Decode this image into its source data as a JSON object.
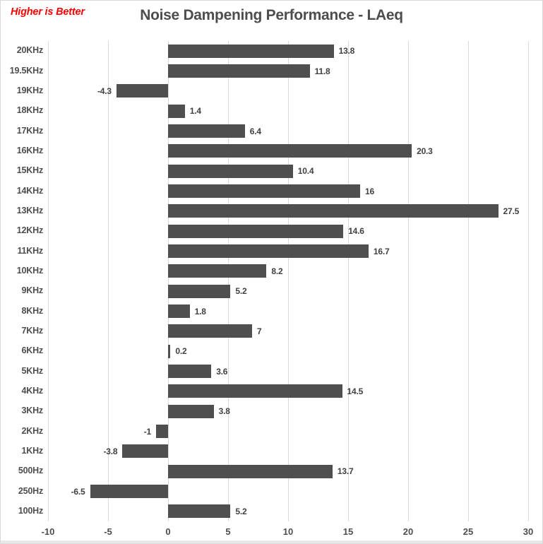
{
  "header": {
    "annotation": "Higher is Better",
    "title": "Noise Dampening Performance - LAeq"
  },
  "chart_data": {
    "type": "bar",
    "orientation": "horizontal",
    "title": "Noise Dampening Performance - LAeq",
    "annotation": "Higher is Better",
    "categories": [
      "20KHz",
      "19.5KHz",
      "19KHz",
      "18KHz",
      "17KHz",
      "16KHz",
      "15KHz",
      "14KHz",
      "13KHz",
      "12KHz",
      "11KHz",
      "10KHz",
      "9KHz",
      "8KHz",
      "7KHz",
      "6KHz",
      "5KHz",
      "4KHz",
      "3KHz",
      "2KHz",
      "1KHz",
      "500Hz",
      "250Hz",
      "100Hz"
    ],
    "values": [
      13.8,
      11.8,
      -4.3,
      1.4,
      6.4,
      20.3,
      10.4,
      16,
      27.5,
      14.6,
      16.7,
      8.2,
      5.2,
      1.8,
      7,
      0.2,
      3.6,
      14.5,
      3.8,
      -1,
      -3.8,
      13.7,
      -6.5,
      5.2
    ],
    "xlabel": "",
    "ylabel": "",
    "xlim": [
      -10,
      30
    ],
    "x_ticks": [
      -10,
      -5,
      0,
      5,
      10,
      15,
      20,
      25,
      30
    ],
    "grid": "vertical",
    "data_labels": true,
    "legend": "none",
    "colors": {
      "bar": "#4f4f4f",
      "grid": "#d9d9d9",
      "title": "#4d4d4d",
      "annotation": "#ff0000",
      "text": "#404040",
      "tick_text": "#4d4d4d"
    }
  }
}
